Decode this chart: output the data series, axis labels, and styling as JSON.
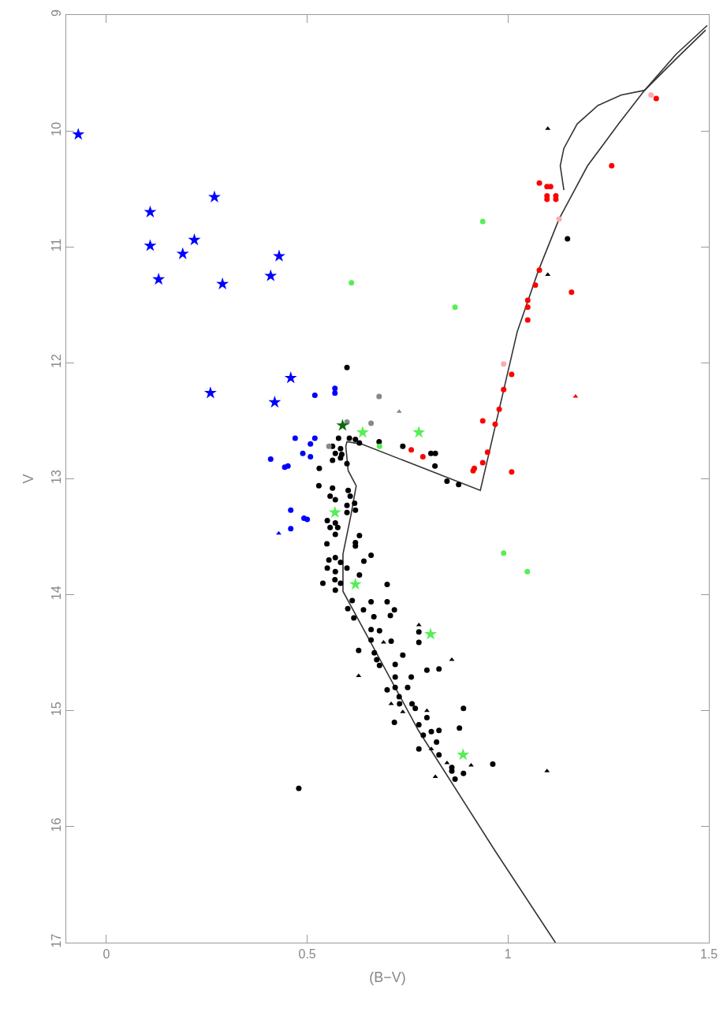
{
  "chart_data": {
    "type": "scatter",
    "xlabel": "(B−V)",
    "ylabel": "V",
    "xlim": [
      -0.1,
      1.5
    ],
    "xticks": [
      0,
      0.5,
      1,
      1.5
    ],
    "ylim": [
      17,
      9
    ],
    "yticks": [
      9,
      10,
      11,
      12,
      13,
      14,
      15,
      16,
      17
    ],
    "series": [
      {
        "type": "line",
        "color": "#333333",
        "x": [
          1.118,
          0.968,
          0.777,
          0.589,
          0.589,
          0.609,
          0.622,
          0.602,
          0.596,
          0.599,
          0.635,
          0.931,
          1.023,
          1.075,
          1.127,
          1.198,
          1.275,
          1.34,
          1.418,
          1.492
        ],
        "values": [
          17.0,
          16.21,
          15.17,
          13.97,
          13.65,
          13.31,
          13.06,
          12.93,
          12.72,
          12.68,
          12.7,
          13.1,
          11.73,
          11.21,
          10.76,
          10.3,
          9.94,
          9.65,
          9.38,
          9.13
        ]
      },
      {
        "type": "line",
        "color": "#333333",
        "x": [
          1.34,
          1.418,
          1.496
        ],
        "values": [
          9.65,
          9.34,
          9.09
        ]
      },
      {
        "type": "line",
        "color": "#333333",
        "x": [
          1.139,
          1.13,
          1.139,
          1.172,
          1.224,
          1.282,
          1.34
        ],
        "values": [
          10.51,
          10.3,
          10.15,
          9.94,
          9.78,
          9.69,
          9.65
        ]
      },
      {
        "marker": "circle",
        "color": "#000000",
        "x": [
          0.599,
          0.578,
          0.605,
          0.62,
          0.63,
          0.679,
          0.738,
          0.808,
          0.819,
          0.818,
          0.848,
          0.877,
          0.563,
          0.583,
          0.57,
          0.586,
          0.563,
          0.583,
          0.599,
          0.53,
          0.529,
          0.563,
          0.557,
          0.57,
          0.602,
          0.607,
          0.618,
          0.599,
          0.55,
          0.57,
          0.557,
          0.576,
          0.599,
          0.62,
          0.63,
          0.62,
          0.62,
          0.549,
          0.57,
          0.659,
          0.641,
          0.554,
          0.57,
          0.583,
          0.599,
          0.55,
          0.57,
          0.63,
          0.539,
          0.569,
          0.583,
          0.699,
          0.57,
          0.612,
          0.659,
          0.699,
          0.601,
          0.64,
          0.717,
          0.616,
          0.666,
          0.707,
          0.659,
          0.68,
          0.778,
          0.778,
          0.659,
          0.709,
          0.628,
          0.667,
          0.673,
          0.738,
          0.68,
          0.719,
          0.798,
          0.828,
          0.719,
          0.759,
          0.699,
          0.719,
          0.75,
          0.729,
          0.73,
          0.761,
          0.769,
          0.889,
          0.717,
          0.778,
          0.798,
          0.789,
          0.809,
          0.828,
          0.879,
          0.822,
          0.778,
          0.828,
          0.86,
          0.86,
          0.868,
          0.889,
          0.962,
          1.148,
          0.479
        ],
        "values": [
          12.04,
          12.65,
          12.65,
          12.66,
          12.69,
          12.68,
          12.72,
          12.78,
          12.78,
          12.89,
          13.02,
          13.05,
          12.72,
          12.74,
          12.78,
          12.79,
          12.84,
          12.82,
          12.87,
          12.91,
          13.06,
          13.08,
          13.15,
          13.18,
          13.1,
          13.15,
          13.21,
          13.23,
          13.36,
          13.38,
          13.42,
          13.42,
          13.29,
          13.27,
          13.49,
          13.55,
          13.58,
          13.56,
          13.48,
          13.66,
          13.71,
          13.7,
          13.68,
          13.72,
          13.77,
          13.77,
          13.8,
          13.83,
          13.9,
          13.87,
          13.9,
          13.91,
          13.96,
          14.05,
          14.06,
          14.06,
          14.12,
          14.13,
          14.13,
          14.2,
          14.19,
          14.18,
          14.3,
          14.31,
          14.32,
          14.41,
          14.39,
          14.4,
          14.48,
          14.5,
          14.56,
          14.52,
          14.61,
          14.6,
          14.65,
          14.64,
          14.71,
          14.71,
          14.82,
          14.8,
          14.8,
          14.88,
          14.94,
          14.94,
          14.98,
          14.98,
          15.1,
          15.12,
          15.06,
          15.21,
          15.18,
          15.17,
          15.15,
          15.27,
          15.33,
          15.38,
          15.49,
          15.52,
          15.59,
          15.54,
          15.46,
          10.93,
          15.67
        ]
      },
      {
        "marker": "triangle",
        "color": "#000000",
        "x": [
          1.099,
          1.099,
          1.097,
          0.778,
          0.69,
          0.86,
          0.628,
          0.709,
          0.738,
          0.798,
          0.809,
          0.848,
          0.908,
          0.819
        ],
        "values": [
          9.98,
          11.24,
          15.52,
          14.26,
          14.41,
          14.56,
          14.7,
          14.94,
          15.01,
          15.0,
          15.33,
          15.45,
          15.47,
          15.57
        ]
      },
      {
        "marker": "circle",
        "color": "#888888",
        "x": [
          0.679,
          0.659,
          0.599,
          0.554
        ],
        "values": [
          12.29,
          12.52,
          12.51,
          12.72
        ]
      },
      {
        "marker": "triangle",
        "color": "#888888",
        "x": [
          0.729
        ],
        "values": [
          12.42
        ]
      },
      {
        "marker": "circle",
        "color": "#ff0000",
        "x": [
          1.078,
          1.097,
          1.106,
          1.097,
          1.097,
          1.119,
          1.119,
          1.258,
          1.369,
          1.078,
          1.068,
          1.158,
          1.049,
          1.049,
          1.049,
          1.009,
          0.989,
          0.978,
          0.937,
          0.968,
          0.949,
          0.937,
          0.916,
          0.913,
          1.009,
          0.759,
          0.788
        ],
        "values": [
          10.45,
          10.48,
          10.48,
          10.56,
          10.59,
          10.56,
          10.59,
          10.3,
          9.72,
          11.2,
          11.33,
          11.39,
          11.46,
          11.52,
          11.63,
          12.1,
          12.23,
          12.4,
          12.5,
          12.53,
          12.77,
          12.86,
          12.91,
          12.93,
          12.94,
          12.75,
          12.81
        ]
      },
      {
        "marker": "triangle",
        "color": "#ff0000",
        "x": [
          1.168
        ],
        "values": [
          12.29
        ]
      },
      {
        "marker": "circle",
        "color": "#ffaaaa",
        "x": [
          1.356,
          1.127,
          0.989
        ],
        "values": [
          9.69,
          10.76,
          12.01
        ]
      },
      {
        "marker": "circle",
        "color": "#0000ff",
        "x": [
          0.519,
          0.569,
          0.569,
          0.47,
          0.519,
          0.508,
          0.489,
          0.508,
          0.409,
          0.444,
          0.452,
          0.459,
          0.492,
          0.5,
          0.459
        ],
        "values": [
          12.28,
          12.22,
          12.26,
          12.65,
          12.65,
          12.7,
          12.78,
          12.81,
          12.83,
          12.9,
          12.89,
          13.27,
          13.34,
          13.35,
          13.43
        ]
      },
      {
        "marker": "triangle",
        "color": "#0000ff",
        "x": [
          0.429
        ],
        "values": [
          13.47
        ]
      },
      {
        "marker": "star",
        "color": "#0000ff",
        "x": [
          -0.07,
          0.109,
          0.109,
          0.19,
          0.13,
          0.409,
          0.259
        ],
        "values": [
          10.03,
          10.7,
          10.99,
          11.06,
          11.28,
          11.25,
          12.26
        ]
      },
      {
        "marker": "star",
        "color": "#0000ff",
        "x": [
          0.269,
          0.219,
          0.43,
          0.289,
          0.459,
          0.419
        ],
        "values": [
          10.57,
          10.94,
          11.08,
          11.32,
          12.13,
          12.34
        ]
      },
      {
        "marker": "circle",
        "color": "#55ee55",
        "x": [
          0.937,
          0.868,
          0.61,
          0.989,
          1.048,
          0.68
        ],
        "values": [
          10.78,
          11.52,
          11.31,
          13.64,
          13.8,
          12.72
        ]
      },
      {
        "marker": "star",
        "color": "#55ee55",
        "x": [
          0.638,
          0.778,
          0.569,
          0.62,
          0.807,
          0.888
        ],
        "values": [
          12.6,
          12.6,
          13.29,
          13.91,
          14.34,
          15.38
        ]
      },
      {
        "marker": "star",
        "color": "#0a6a0a",
        "x": [
          0.588
        ],
        "values": [
          12.54
        ]
      }
    ]
  }
}
